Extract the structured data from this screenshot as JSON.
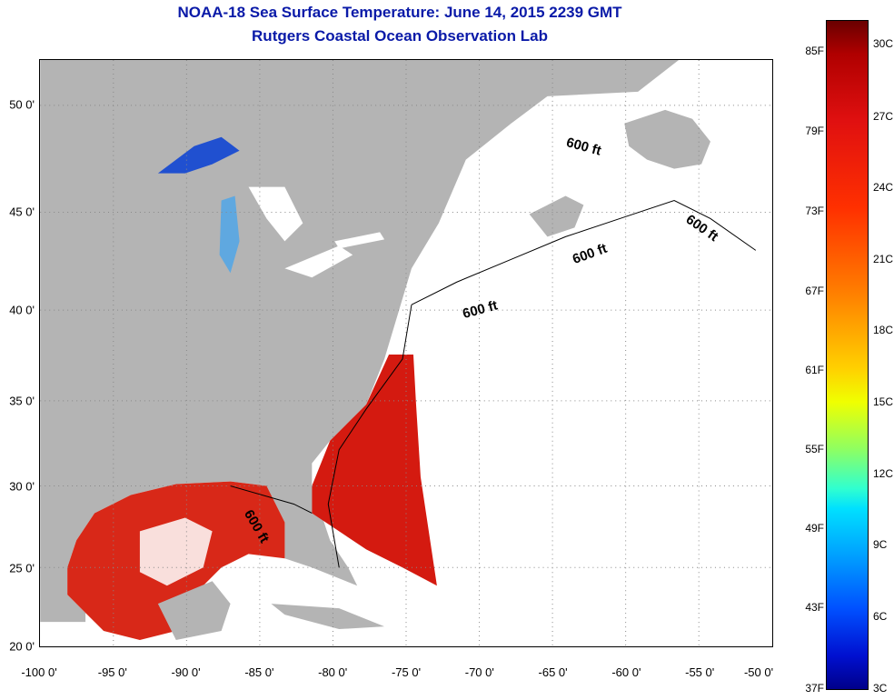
{
  "header": {
    "title": "NOAA-18 Sea Surface Temperature:  June 14, 2015 2239 GMT",
    "subtitle": "Rutgers Coastal Ocean Observation Lab"
  },
  "map": {
    "x_ticks": [
      "-100 0'",
      "-95 0'",
      "-90 0'",
      "-85 0'",
      "-80 0'",
      "-75 0'",
      "-70 0'",
      "-65 0'",
      "-60 0'",
      "-55 0'",
      "-50 0'"
    ],
    "y_ticks": [
      "50 0'",
      "45 0'",
      "40 0'",
      "35 0'",
      "30 0'",
      "25 0'",
      "20 0'"
    ],
    "contour_labels": [
      "600 ft",
      "600 ft",
      "600 ft",
      "600 ft",
      "600 ft"
    ],
    "colors": {
      "land": "#b4b4b4",
      "no_data": "#ffffff",
      "warm": "#d41a10"
    }
  },
  "colorbar": {
    "fahrenheit_ticks": [
      "85F",
      "79F",
      "73F",
      "67F",
      "61F",
      "55F",
      "49F",
      "43F",
      "37F"
    ],
    "celsius_ticks": [
      "30C",
      "27C",
      "24C",
      "21C",
      "18C",
      "15C",
      "12C",
      "9C",
      "6C",
      "3C"
    ]
  }
}
